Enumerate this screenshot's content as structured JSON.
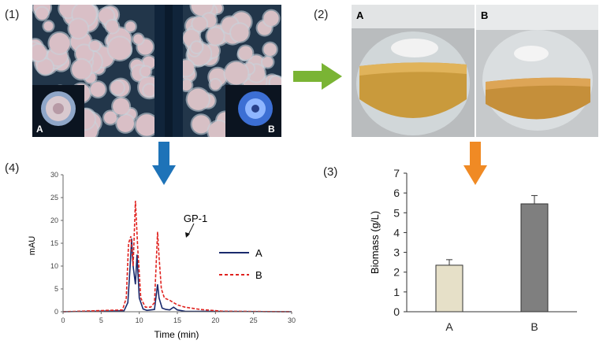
{
  "panels": {
    "p1": "(1)",
    "p2": "(2)",
    "p3": "(3)",
    "p4": "(4)"
  },
  "plate_photo": {
    "inset_a": "A",
    "inset_b": "B"
  },
  "flask_photo": {
    "left": "A",
    "right": "B"
  },
  "arrows": {
    "right_color": "#7ab434",
    "down_blue_color": "#1e73b8",
    "down_orange_color": "#f08a24"
  },
  "chart_data": [
    {
      "type": "line",
      "xlabel": "Time (min)",
      "ylabel": "mAU",
      "xlim": [
        0,
        30
      ],
      "ylim": [
        0,
        30
      ],
      "xticks": [
        0,
        5,
        10,
        15,
        20,
        25,
        30
      ],
      "yticks": [
        0,
        5,
        10,
        15,
        20,
        25,
        30
      ],
      "annotation": "GP-1",
      "series": [
        {
          "name": "A",
          "color": "#1a2a6c",
          "style": "solid",
          "x": [
            0,
            8.0,
            8.5,
            8.8,
            9.0,
            9.2,
            9.5,
            9.7,
            10.0,
            10.5,
            11.0,
            12.0,
            12.4,
            12.6,
            13.0,
            13.5,
            14.0,
            14.5,
            15.0,
            16.0,
            30
          ],
          "y": [
            0,
            0.2,
            2.0,
            10.0,
            16.0,
            10.0,
            6.0,
            12.5,
            3.0,
            0.6,
            0.3,
            0.5,
            6.0,
            3.0,
            0.8,
            0.5,
            0.4,
            1.0,
            0.4,
            0.1,
            0
          ]
        },
        {
          "name": "B",
          "color": "#e0221f",
          "style": "dashed",
          "x": [
            0,
            7.8,
            8.3,
            8.6,
            8.9,
            9.2,
            9.5,
            9.8,
            10.2,
            10.8,
            11.5,
            12.0,
            12.4,
            12.6,
            12.9,
            13.3,
            14.0,
            15.0,
            16.0,
            18.0,
            21.0,
            30
          ],
          "y": [
            0,
            0.4,
            3.0,
            15.0,
            16.5,
            10.0,
            24.3,
            14.0,
            3.0,
            1.0,
            1.0,
            2.0,
            17.5,
            12.0,
            5.0,
            3.0,
            2.5,
            1.5,
            1.0,
            0.5,
            0.1,
            0
          ]
        }
      ]
    },
    {
      "type": "bar",
      "categories": [
        "A",
        "B"
      ],
      "values": [
        2.35,
        5.45
      ],
      "errors": [
        0.28,
        0.42
      ],
      "colors": [
        "#e6e0c8",
        "#7f7f7f"
      ],
      "ylabel": "Biomass (g/L)",
      "ylim": [
        0,
        7
      ],
      "yticks": [
        0,
        1,
        2,
        3,
        4,
        5,
        6,
        7
      ]
    }
  ]
}
